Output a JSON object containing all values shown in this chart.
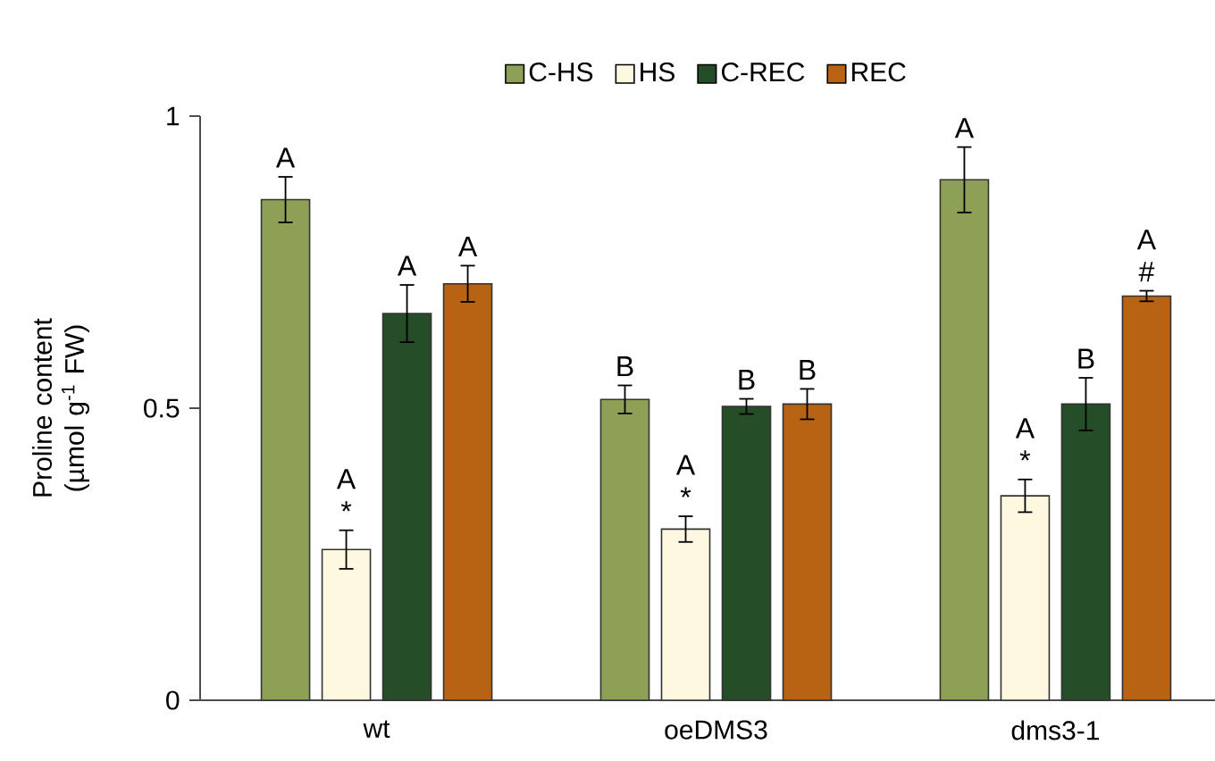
{
  "chart_data": {
    "type": "bar",
    "ylabel": "Proline content (µmol g$^{-1}$ FW)",
    "categories": [
      "wt",
      "oeDMS3",
      "dms3-1"
    ],
    "ylim": [
      0,
      1
    ],
    "yticks": [
      0,
      0.5,
      1
    ],
    "legend": "top",
    "grid": false,
    "series": [
      {
        "name": "C-HS",
        "color": "#8da055",
        "values": [
          0.857,
          0.515,
          0.891
        ],
        "errors": [
          0.039,
          0.024,
          0.056
        ],
        "value_labels": [
          "A",
          "B",
          "A"
        ]
      },
      {
        "name": "HS",
        "color": "#fff8e1",
        "values": [
          0.258,
          0.293,
          0.35
        ],
        "errors": [
          0.033,
          0.022,
          0.028
        ],
        "value_labels": [
          "A *",
          "A *",
          "A *"
        ]
      },
      {
        "name": "C-REC",
        "color": "#254d27",
        "values": [
          0.662,
          0.503,
          0.507
        ],
        "errors": [
          0.049,
          0.013,
          0.045
        ],
        "value_labels": [
          "A",
          "B",
          "B"
        ]
      },
      {
        "name": "REC",
        "color": "#b86314",
        "values": [
          0.713,
          0.507,
          0.692
        ],
        "errors": [
          0.031,
          0.026,
          0.009
        ],
        "value_labels": [
          "A",
          "B",
          "A #"
        ]
      }
    ]
  }
}
